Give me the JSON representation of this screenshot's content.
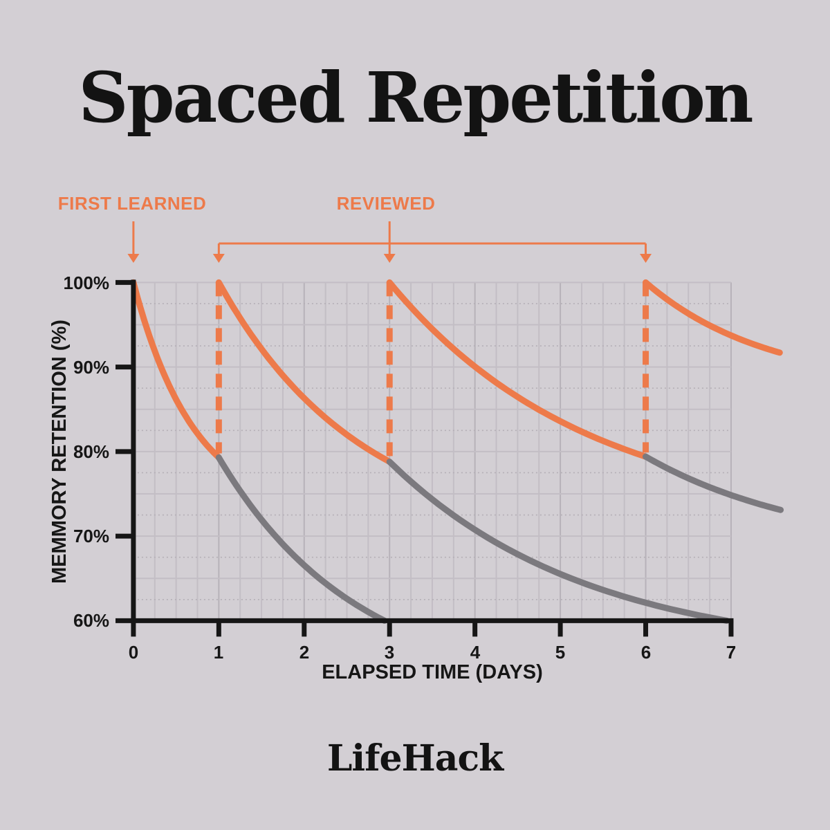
{
  "title": "Spaced Repetition",
  "brand": "LifeHack",
  "colors": {
    "background": "#D3CFD4",
    "accent_orange": "#ED7A4A",
    "curve_gray": "#7B797E",
    "axis_black": "#161616",
    "grid_solid": "#C3BEC5",
    "grid_dotted": "#B4AFB6",
    "grid_major": "#B7B2B9",
    "title_black": "#131313"
  },
  "annotations": {
    "first_learned": {
      "label": "FIRST LEARNED",
      "day": 0
    },
    "reviewed": {
      "label": "REVIEWED",
      "label_day": 3,
      "bracket_from_day": 1,
      "bracket_to_day": 6,
      "arrow_days": [
        1,
        3,
        6
      ]
    }
  },
  "chart_data": {
    "type": "line",
    "xlabel": "ELAPSED TIME (DAYS)",
    "ylabel": "MEMMORY RETENTION (%)",
    "xlim": [
      0,
      7
    ],
    "ylim": [
      60,
      100
    ],
    "grid": {
      "x_step_days": 0.25,
      "y_step_pct": 2.5,
      "style": "minor grid, alternating solid/dotted rows"
    },
    "x_ticks": [
      {
        "value": 0,
        "label": "0"
      },
      {
        "value": 1,
        "label": "1"
      },
      {
        "value": 2,
        "label": "2"
      },
      {
        "value": 3,
        "label": "3"
      },
      {
        "value": 4,
        "label": "4"
      },
      {
        "value": 5,
        "label": "5"
      },
      {
        "value": 6,
        "label": "6"
      },
      {
        "value": 7,
        "label": "7"
      }
    ],
    "y_ticks": [
      {
        "value": 100,
        "label": "100%"
      },
      {
        "value": 90,
        "label": "90%"
      },
      {
        "value": 80,
        "label": "80%"
      },
      {
        "value": 70,
        "label": "70%"
      },
      {
        "value": 60,
        "label": "60%"
      }
    ],
    "series": [
      {
        "name": "retention-with-review",
        "color_key": "accent_orange",
        "segments": [
          {
            "t0": 0,
            "y0": 100,
            "t1": 1,
            "y1": 79.3,
            "bend": 1.4
          },
          {
            "t0": 1,
            "y0": 100,
            "t1": 3,
            "y1": 78.8,
            "bend": 1.2
          },
          {
            "t0": 3,
            "y0": 100,
            "t1": 6,
            "y1": 79.4,
            "bend": 1.3
          },
          {
            "t0": 6,
            "y0": 100,
            "t1": 7.57,
            "y1": 91.7,
            "bend": 1.1
          }
        ]
      },
      {
        "name": "forgetting-without-review",
        "color_key": "curve_gray",
        "segments": [
          {
            "t0": 1,
            "y0": 79.3,
            "t1": 2.94,
            "y1": 60,
            "bend": 1.2
          },
          {
            "t0": 3,
            "y0": 78.8,
            "t1": 6.95,
            "y1": 60,
            "bend": 1.7
          },
          {
            "t0": 6,
            "y0": 79.4,
            "t1": 7.58,
            "y1": 73.1,
            "bend": 0.8
          }
        ]
      }
    ],
    "review_resets": [
      {
        "day": 1,
        "from_pct": 79.3,
        "to_pct": 100
      },
      {
        "day": 3,
        "from_pct": 78.8,
        "to_pct": 100
      },
      {
        "day": 6,
        "from_pct": 79.4,
        "to_pct": 100
      }
    ]
  }
}
